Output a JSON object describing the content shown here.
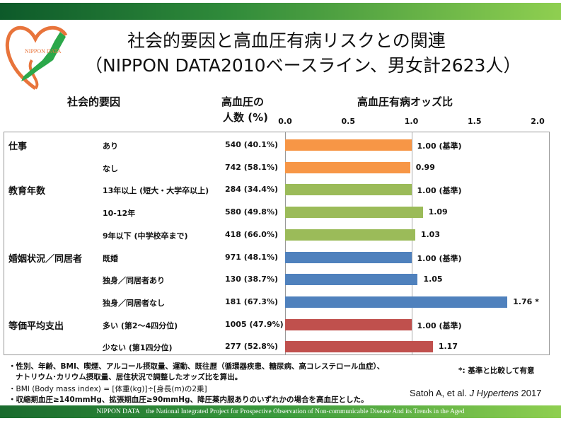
{
  "header": {
    "logo_text": "NIPPON DATA",
    "title_line1": "社会的要因と高血圧有病リスクとの関連",
    "title_line2": "（NIPPON DATA2010ベースライン、男女計2623人）"
  },
  "columns": {
    "factor": "社会的要因",
    "count_line1": "高血圧の",
    "count_line2": "人数 (%)",
    "or": "高血圧有病オッズ比"
  },
  "chart_data": {
    "type": "bar",
    "orientation": "horizontal",
    "title": "高血圧有病オッズ比",
    "xlim": [
      0,
      2.0
    ],
    "xticks": [
      "0.0",
      "0.5",
      "1.0",
      "1.5",
      "2.0"
    ],
    "reference_line": 1.0,
    "rows": [
      {
        "group": "仕事",
        "label": "あり",
        "count": "540 (40.1%)",
        "value": 1.0,
        "value_label": "1.00 (基準)",
        "color": "#F79646"
      },
      {
        "group": "",
        "label": "なし",
        "count": "742 (58.1%)",
        "value": 0.99,
        "value_label": "0.99",
        "color": "#F79646"
      },
      {
        "group": "教育年数",
        "label": "13年以上 (短大・大学卒以上)",
        "count": "284 (34.4%)",
        "value": 1.0,
        "value_label": "1.00 (基準)",
        "color": "#9BBB59"
      },
      {
        "group": "",
        "label": "10-12年",
        "count": "580 (49.8%)",
        "value": 1.09,
        "value_label": "1.09",
        "color": "#9BBB59"
      },
      {
        "group": "",
        "label": "9年以下 (中学校卒まで)",
        "count": "418 (66.0%)",
        "value": 1.03,
        "value_label": "1.03",
        "color": "#9BBB59"
      },
      {
        "group": "婚姻状況／同居者",
        "label": "既婚",
        "count": "971 (48.1%)",
        "value": 1.0,
        "value_label": "1.00 (基準)",
        "color": "#4F81BD"
      },
      {
        "group": "",
        "label": "独身／同居者あり",
        "count": "130 (38.7%)",
        "value": 1.05,
        "value_label": "1.05",
        "color": "#4F81BD"
      },
      {
        "group": "",
        "label": "独身／同居者なし",
        "count": "181 (67.3%)",
        "value": 1.76,
        "value_label": "1.76 *",
        "color": "#4F81BD"
      },
      {
        "group": "等価平均支出",
        "label": "多い (第2～4四分位)",
        "count": "1005 (47.9%)",
        "value": 1.0,
        "value_label": "1.00 (基準)",
        "color": "#C0504D"
      },
      {
        "group": "",
        "label": "少ない (第1四分位)",
        "count": "277 (52.8%)",
        "value": 1.17,
        "value_label": "1.17",
        "color": "#C0504D"
      }
    ]
  },
  "notes": {
    "line1": "・性別、年齢、BMI、喫煙、アルコール摂取量、運動、既往歴（循環器疾患、糖尿病、高コレステロール血症）、",
    "line2": "ナトリウム･カリウム摂取量、居住状況で調整したオッズ比を算出。",
    "line3": "・BMI (Body mass index) = [体重(kg)]÷[身長(m)の2乗]",
    "line4": "・収縮期血圧≥140mmHg、拡張期血圧≥90mmHg、降圧薬内服ありのいずれかの場合を高血圧とした。",
    "significance": "*: 基準と比較して有意",
    "citation_authors": "Satoh A, et al. ",
    "citation_journal": "J Hypertens",
    "citation_year": " 2017"
  },
  "footer": {
    "text": "NIPPON DATA　the National Integrated Project  for Prospective Observation of Non-communicable Disease And its Trends in the Aged"
  }
}
